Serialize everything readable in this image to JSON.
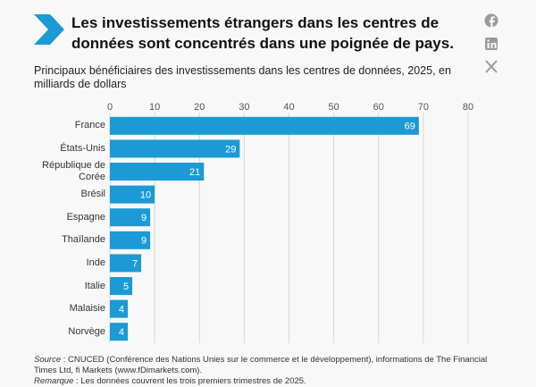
{
  "chart_data": {
    "type": "bar",
    "orientation": "horizontal",
    "title": "Les investissements étrangers dans les centres de données sont concentrés dans une poignée de pays.",
    "subtitle": "Principaux bénéficiaires des investissements dans les centres de données, 2025, en milliards de dollars",
    "categories": [
      "France",
      "États-Unis",
      "République de Corée",
      "Brésil",
      "Espagne",
      "Thaïlande",
      "Inde",
      "Italie",
      "Malaisie",
      "Norvège"
    ],
    "values": [
      69,
      29,
      21,
      10,
      9,
      9,
      7,
      5,
      4,
      4
    ],
    "color": "#1b9ad6",
    "xlim": [
      0,
      80
    ],
    "xticks": [
      0,
      10,
      20,
      30,
      40,
      50,
      60,
      70,
      80
    ],
    "grid": true,
    "source_label": "Source",
    "source_text": ": CNUCED (Conférence des Nations Unies sur le commerce et le développement), informations de The Financial Times Ltd, fi Markets (www.fDimarkets.com).",
    "note_label": "Remarque",
    "note_text": ": Les données couvrent les trois premiers trimestres de 2025."
  }
}
